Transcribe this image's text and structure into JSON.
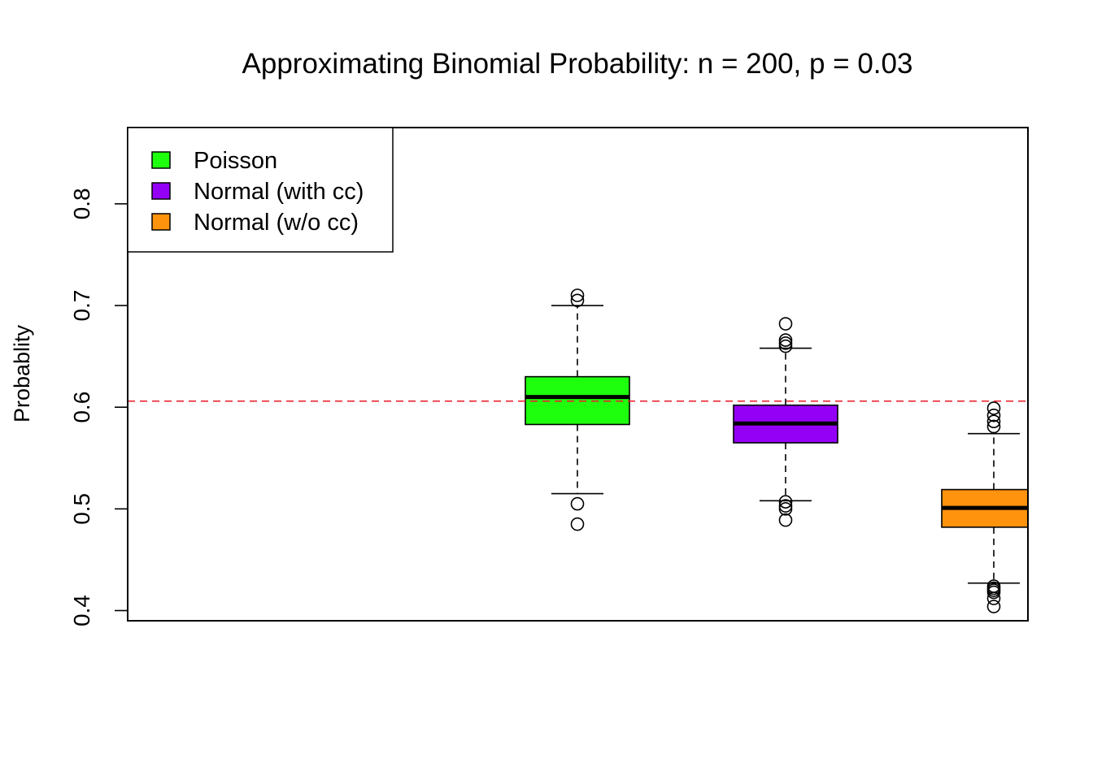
{
  "chart_data": {
    "type": "boxplot",
    "title": "Approximating Binomial Probability: n = 200, p = 0.03",
    "xlabel": "",
    "ylabel": "Probablity",
    "ylim": [
      0.39,
      0.875
    ],
    "yticks": [
      "0.4",
      "0.5",
      "0.6",
      "0.7",
      "0.8"
    ],
    "reference_line": {
      "y": 0.606,
      "color": "#e8222f",
      "style": "dashed"
    },
    "legend": {
      "position": "top-left",
      "entries": [
        {
          "label": "Poisson",
          "color": "#1eff0e"
        },
        {
          "label": "Normal (with cc)",
          "color": "#9400f5"
        },
        {
          "label": "Normal (w/o cc)",
          "color": "#ff930d"
        }
      ]
    },
    "series": [
      {
        "name": "Poisson",
        "color": "#1eff0e",
        "whisker_low": 0.515,
        "q1": 0.583,
        "median": 0.61,
        "q3": 0.63,
        "whisker_high": 0.7,
        "outliers": [
          0.71,
          0.705,
          0.505,
          0.485
        ]
      },
      {
        "name": "Normal (with cc)",
        "color": "#9400f5",
        "whisker_low": 0.508,
        "q1": 0.565,
        "median": 0.584,
        "q3": 0.602,
        "whisker_high": 0.658,
        "outliers": [
          0.682,
          0.666,
          0.663,
          0.66,
          0.507,
          0.503,
          0.5,
          0.489
        ]
      },
      {
        "name": "Normal (w/o cc)",
        "color": "#ff930d",
        "whisker_low": 0.427,
        "q1": 0.482,
        "median": 0.501,
        "q3": 0.519,
        "whisker_high": 0.574,
        "outliers": [
          0.599,
          0.592,
          0.586,
          0.581,
          0.424,
          0.422,
          0.42,
          0.418,
          0.412,
          0.404
        ]
      }
    ]
  }
}
